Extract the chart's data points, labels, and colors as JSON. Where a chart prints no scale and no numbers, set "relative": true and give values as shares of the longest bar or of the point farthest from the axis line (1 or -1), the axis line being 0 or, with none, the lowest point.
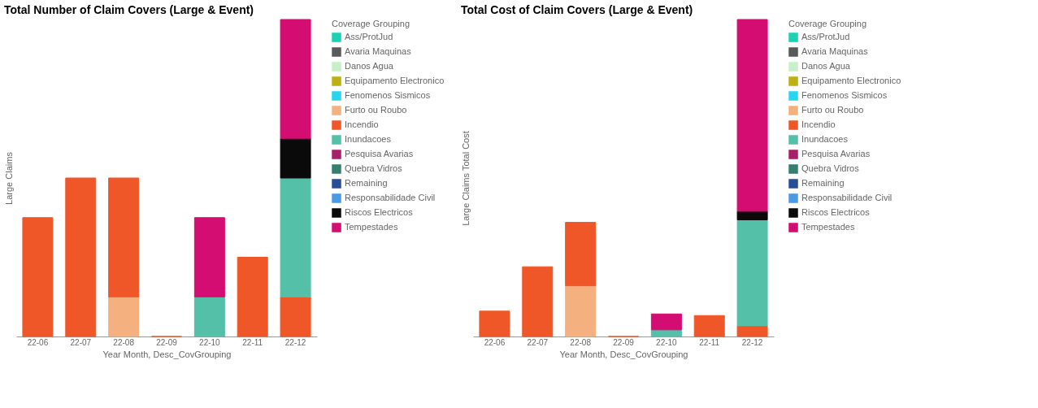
{
  "chart_data": [
    {
      "type": "bar",
      "stacked": true,
      "relative": true,
      "title": "Total Number of Claim Covers (Large & Event)",
      "xlabel": "Year Month, Desc_CovGrouping",
      "ylabel": "Large Claims",
      "legend_title": "Coverage Grouping",
      "legend": "right",
      "categories": [
        "22-06",
        "22-07",
        "22-08",
        "22-09",
        "22-10",
        "22-11",
        "22-12"
      ],
      "series": [
        {
          "name": "Ass/ProtJud",
          "color": "#1ad1b5",
          "values": [
            null,
            null,
            null,
            null,
            null,
            null,
            null
          ]
        },
        {
          "name": "Avaria Maquinas",
          "color": "#5a5a5a",
          "values": [
            null,
            null,
            null,
            null,
            null,
            null,
            null
          ]
        },
        {
          "name": "Danos Agua",
          "color": "#c8f0c8",
          "values": [
            null,
            null,
            null,
            null,
            null,
            null,
            null
          ]
        },
        {
          "name": "Equipamento Electronico",
          "color": "#bdb012",
          "values": [
            null,
            null,
            null,
            null,
            null,
            null,
            null
          ]
        },
        {
          "name": "Fenomenos Sismicos",
          "color": "#29d4ef",
          "values": [
            null,
            null,
            null,
            null,
            null,
            null,
            null
          ]
        },
        {
          "name": "Furto ou Roubo",
          "color": "#f5b07f",
          "values": [
            null,
            null,
            0.125,
            null,
            null,
            null,
            null
          ]
        },
        {
          "name": "Incendio",
          "color": "#ef5728",
          "values": [
            0.375,
            0.5,
            0.375,
            0,
            null,
            0.25,
            0.125
          ]
        },
        {
          "name": "Inundacoes",
          "color": "#55c0a8",
          "values": [
            null,
            null,
            null,
            null,
            0.125,
            null,
            0.375
          ]
        },
        {
          "name": "Pesquisa Avarias",
          "color": "#a8206a",
          "values": [
            null,
            null,
            null,
            null,
            null,
            null,
            null
          ]
        },
        {
          "name": "Quebra Vidros",
          "color": "#357f6d",
          "values": [
            null,
            null,
            null,
            null,
            null,
            null,
            null
          ]
        },
        {
          "name": "Remaining",
          "color": "#2a4d95",
          "values": [
            null,
            null,
            null,
            null,
            null,
            null,
            null
          ]
        },
        {
          "name": "Responsabilidade Civil",
          "color": "#4a9be6",
          "values": [
            null,
            null,
            null,
            null,
            null,
            null,
            null
          ]
        },
        {
          "name": "Riscos Electricos",
          "color": "#0a0a0a",
          "values": [
            null,
            null,
            null,
            null,
            null,
            null,
            0.125
          ]
        },
        {
          "name": "Tempestades",
          "color": "#d30d72",
          "values": [
            null,
            null,
            null,
            null,
            0.25,
            null,
            0.375
          ]
        }
      ]
    },
    {
      "type": "bar",
      "stacked": true,
      "relative": true,
      "title": "Total Cost of Claim Covers (Large & Event)",
      "xlabel": "Year Month, Desc_CovGrouping",
      "ylabel": "Large Claims Total Cost",
      "legend_title": "Coverage Grouping",
      "legend": "right",
      "categories": [
        "22-06",
        "22-07",
        "22-08",
        "22-09",
        "22-10",
        "22-11",
        "22-12"
      ],
      "series": [
        {
          "name": "Ass/ProtJud",
          "color": "#1ad1b5",
          "values": [
            null,
            null,
            null,
            null,
            null,
            null,
            null
          ]
        },
        {
          "name": "Avaria Maquinas",
          "color": "#5a5a5a",
          "values": [
            null,
            null,
            null,
            null,
            null,
            null,
            null
          ]
        },
        {
          "name": "Danos Agua",
          "color": "#c8f0c8",
          "values": [
            null,
            null,
            null,
            null,
            null,
            null,
            null
          ]
        },
        {
          "name": "Equipamento Electronico",
          "color": "#bdb012",
          "values": [
            null,
            null,
            null,
            null,
            null,
            null,
            null
          ]
        },
        {
          "name": "Fenomenos Sismicos",
          "color": "#29d4ef",
          "values": [
            null,
            null,
            null,
            null,
            null,
            null,
            null
          ]
        },
        {
          "name": "Furto ou Roubo",
          "color": "#f5b07f",
          "values": [
            null,
            null,
            0.16,
            null,
            null,
            null,
            null
          ]
        },
        {
          "name": "Incendio",
          "color": "#ef5728",
          "values": [
            0.08,
            0.22,
            0.2,
            0,
            null,
            0.066,
            0.034
          ]
        },
        {
          "name": "Inundacoes",
          "color": "#55c0a8",
          "values": [
            null,
            null,
            null,
            null,
            0.021,
            null,
            0.334
          ]
        },
        {
          "name": "Pesquisa Avarias",
          "color": "#a8206a",
          "values": [
            null,
            null,
            null,
            null,
            null,
            null,
            null
          ]
        },
        {
          "name": "Quebra Vidros",
          "color": "#357f6d",
          "values": [
            null,
            null,
            null,
            null,
            null,
            null,
            null
          ]
        },
        {
          "name": "Remaining",
          "color": "#2a4d95",
          "values": [
            null,
            null,
            null,
            null,
            null,
            null,
            null
          ]
        },
        {
          "name": "Responsabilidade Civil",
          "color": "#4a9be6",
          "values": [
            null,
            null,
            null,
            null,
            null,
            null,
            null
          ]
        },
        {
          "name": "Riscos Electricos",
          "color": "#0a0a0a",
          "values": [
            null,
            null,
            null,
            null,
            null,
            null,
            0.027
          ]
        },
        {
          "name": "Tempestades",
          "color": "#d30d72",
          "values": [
            null,
            null,
            null,
            null,
            0.05,
            null,
            0.605
          ]
        }
      ]
    }
  ]
}
